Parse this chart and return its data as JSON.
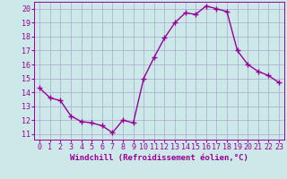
{
  "x": [
    0,
    1,
    2,
    3,
    4,
    5,
    6,
    7,
    8,
    9,
    10,
    11,
    12,
    13,
    14,
    15,
    16,
    17,
    18,
    19,
    20,
    21,
    22,
    23
  ],
  "y": [
    14.3,
    13.6,
    13.4,
    12.3,
    11.9,
    11.8,
    11.6,
    11.1,
    12.0,
    11.8,
    15.0,
    16.5,
    17.9,
    19.0,
    19.7,
    19.6,
    20.2,
    20.0,
    19.8,
    17.0,
    16.0,
    15.5,
    15.2,
    14.7
  ],
  "line_color": "#990099",
  "marker": "+",
  "marker_size": 4,
  "marker_linewidth": 1.0,
  "xlabel": "Windchill (Refroidissement éolien,°C)",
  "xlabel_fontsize": 6.5,
  "ylabel_ticks": [
    11,
    12,
    13,
    14,
    15,
    16,
    17,
    18,
    19,
    20
  ],
  "xticks": [
    0,
    1,
    2,
    3,
    4,
    5,
    6,
    7,
    8,
    9,
    10,
    11,
    12,
    13,
    14,
    15,
    16,
    17,
    18,
    19,
    20,
    21,
    22,
    23
  ],
  "xlim": [
    -0.5,
    23.5
  ],
  "ylim": [
    10.6,
    20.5
  ],
  "bg_color": "#cce8e8",
  "grid_color": "#aaaacc",
  "tick_fontsize": 6.0,
  "line_width": 1.0
}
